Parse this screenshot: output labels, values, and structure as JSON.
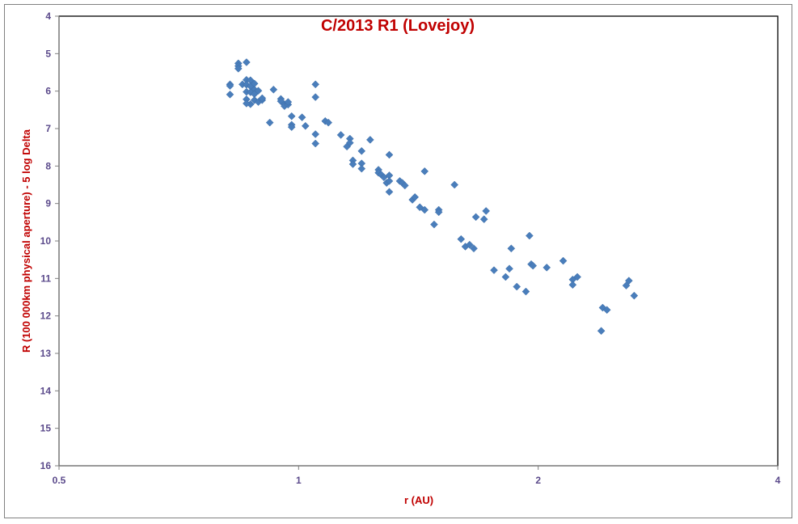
{
  "chart_data": {
    "type": "scatter",
    "title": "C/2013 R1 (Lovejoy)",
    "xlabel": "r (AU)",
    "ylabel": "R (100 000km physical aperture) - 5 log Delta",
    "x_scale": "log",
    "xlim": [
      0.5,
      4
    ],
    "ylim": [
      16,
      4
    ],
    "y_inverted": true,
    "x_ticks": [
      "0.5",
      "1",
      "2",
      "4"
    ],
    "y_ticks": [
      "4",
      "5",
      "6",
      "7",
      "8",
      "9",
      "10",
      "11",
      "12",
      "13",
      "14",
      "15",
      "16"
    ],
    "grid": false,
    "legend": "none",
    "colors": {
      "marker": "#4a7ebb",
      "title": "#c00000",
      "ticks": "#5b4a8b"
    },
    "series": [
      {
        "points": [
          [
            0.84,
            5.26
          ],
          [
            0.84,
            5.33
          ],
          [
            0.84,
            5.4
          ],
          [
            0.86,
            5.23
          ],
          [
            0.82,
            5.82
          ],
          [
            0.82,
            5.86
          ],
          [
            0.82,
            6.09
          ],
          [
            0.85,
            5.82
          ],
          [
            0.86,
            5.7
          ],
          [
            0.86,
            5.83
          ],
          [
            0.87,
            5.71
          ],
          [
            0.87,
            5.87
          ],
          [
            0.88,
            5.96
          ],
          [
            0.88,
            5.8
          ],
          [
            0.86,
            6.02
          ],
          [
            0.86,
            6.22
          ],
          [
            0.87,
            6.03
          ],
          [
            0.87,
            6.35
          ],
          [
            0.88,
            6.08
          ],
          [
            0.88,
            6.24
          ],
          [
            0.89,
            5.99
          ],
          [
            0.89,
            6.29
          ],
          [
            0.86,
            6.33
          ],
          [
            0.9,
            6.24
          ],
          [
            0.9,
            6.19
          ],
          [
            0.93,
            5.96
          ],
          [
            0.95,
            6.21
          ],
          [
            0.95,
            6.27
          ],
          [
            0.96,
            6.35
          ],
          [
            0.96,
            6.4
          ],
          [
            0.97,
            6.36
          ],
          [
            0.97,
            6.29
          ],
          [
            0.98,
            6.67
          ],
          [
            0.98,
            6.9
          ],
          [
            0.98,
            6.96
          ],
          [
            0.92,
            6.84
          ],
          [
            1.01,
            6.7
          ],
          [
            1.02,
            6.93
          ],
          [
            1.05,
            5.82
          ],
          [
            1.05,
            6.16
          ],
          [
            1.05,
            7.15
          ],
          [
            1.05,
            7.4
          ],
          [
            1.08,
            6.8
          ],
          [
            1.09,
            6.84
          ],
          [
            1.13,
            7.17
          ],
          [
            1.15,
            7.48
          ],
          [
            1.16,
            7.27
          ],
          [
            1.16,
            7.38
          ],
          [
            1.17,
            7.85
          ],
          [
            1.17,
            7.95
          ],
          [
            1.2,
            7.6
          ],
          [
            1.2,
            7.93
          ],
          [
            1.2,
            8.07
          ],
          [
            1.23,
            7.3
          ],
          [
            1.26,
            8.1
          ],
          [
            1.26,
            8.18
          ],
          [
            1.27,
            8.23
          ],
          [
            1.28,
            8.3
          ],
          [
            1.29,
            8.45
          ],
          [
            1.3,
            8.25
          ],
          [
            1.3,
            8.4
          ],
          [
            1.3,
            8.69
          ],
          [
            1.3,
            7.7
          ],
          [
            1.34,
            8.4
          ],
          [
            1.35,
            8.45
          ],
          [
            1.36,
            8.52
          ],
          [
            1.39,
            8.9
          ],
          [
            1.4,
            8.83
          ],
          [
            1.42,
            9.1
          ],
          [
            1.44,
            9.17
          ],
          [
            1.44,
            8.14
          ],
          [
            1.48,
            9.56
          ],
          [
            1.5,
            9.17
          ],
          [
            1.5,
            9.23
          ],
          [
            1.57,
            8.5
          ],
          [
            1.6,
            9.95
          ],
          [
            1.62,
            10.15
          ],
          [
            1.64,
            10.1
          ],
          [
            1.66,
            10.2
          ],
          [
            1.67,
            9.36
          ],
          [
            1.71,
            9.42
          ],
          [
            1.72,
            9.2
          ],
          [
            1.76,
            10.78
          ],
          [
            1.82,
            10.96
          ],
          [
            1.84,
            10.74
          ],
          [
            1.85,
            10.2
          ],
          [
            1.88,
            11.22
          ],
          [
            1.93,
            11.35
          ],
          [
            1.95,
            9.86
          ],
          [
            1.96,
            10.62
          ],
          [
            1.97,
            10.66
          ],
          [
            2.05,
            10.71
          ],
          [
            2.15,
            10.53
          ],
          [
            2.21,
            11.03
          ],
          [
            2.21,
            11.17
          ],
          [
            2.24,
            10.96
          ],
          [
            2.4,
            12.4
          ],
          [
            2.41,
            11.78
          ],
          [
            2.44,
            11.84
          ],
          [
            2.58,
            11.19
          ],
          [
            2.6,
            11.06
          ],
          [
            2.64,
            11.46
          ]
        ]
      }
    ]
  }
}
